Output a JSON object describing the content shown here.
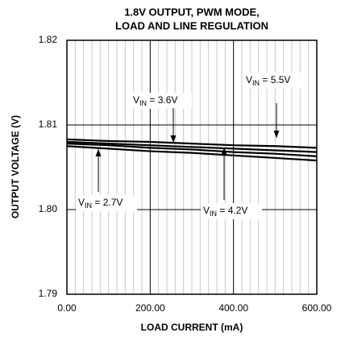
{
  "chart_data": {
    "type": "line",
    "title": [
      "1.8V OUTPUT, PWM MODE,",
      "LOAD AND LINE REGULATION"
    ],
    "x_label": "LOAD CURRENT (mA)",
    "y_label": "OUTPUT  VOLTAGE  (V)",
    "x": [
      0,
      100,
      200,
      300,
      400,
      500,
      600
    ],
    "series": [
      {
        "name": "V IN = 2.7V",
        "color": "#000000",
        "values": [
          1.8075,
          1.8072,
          1.8069,
          1.8067,
          1.8064,
          1.8061,
          1.8058
        ]
      },
      {
        "name": "V IN = 3.6V",
        "color": "#000000",
        "values": [
          1.808,
          1.8078,
          1.8076,
          1.8074,
          1.8072,
          1.807,
          1.8068
        ]
      },
      {
        "name": "V IN = 4.2V",
        "color": "#000000",
        "values": [
          1.8078,
          1.8076,
          1.8073,
          1.8071,
          1.8068,
          1.8066,
          1.8063
        ]
      },
      {
        "name": "V IN = 5.5V",
        "color": "#000000",
        "values": [
          1.8083,
          1.8081,
          1.808,
          1.8078,
          1.8076,
          1.8075,
          1.8073
        ]
      }
    ],
    "annotations": [
      {
        "main": "V",
        "sub": "IN",
        "rest": " = 2.7V"
      },
      {
        "main": "V",
        "sub": "IN",
        "rest": " = 3.6V"
      },
      {
        "main": "V",
        "sub": "IN",
        "rest": " = 4.2V"
      },
      {
        "main": "V",
        "sub": "IN",
        "rest": " = 5.5V"
      }
    ],
    "xlim": [
      0,
      600
    ],
    "xticks": [
      {
        "value": 0,
        "label": "0.00"
      },
      {
        "value": 200,
        "label": "200.00"
      },
      {
        "value": 400,
        "label": "400.00"
      },
      {
        "value": 600,
        "label": "600.00"
      }
    ],
    "ylim": [
      1.79,
      1.82
    ],
    "yticks": [
      {
        "value": 1.79,
        "label": "1.79"
      },
      {
        "value": 1.8,
        "label": "1.80"
      },
      {
        "value": 1.81,
        "label": "1.81"
      },
      {
        "value": 1.82,
        "label": "1.82"
      }
    ],
    "grid": true,
    "minor_grid": true
  }
}
